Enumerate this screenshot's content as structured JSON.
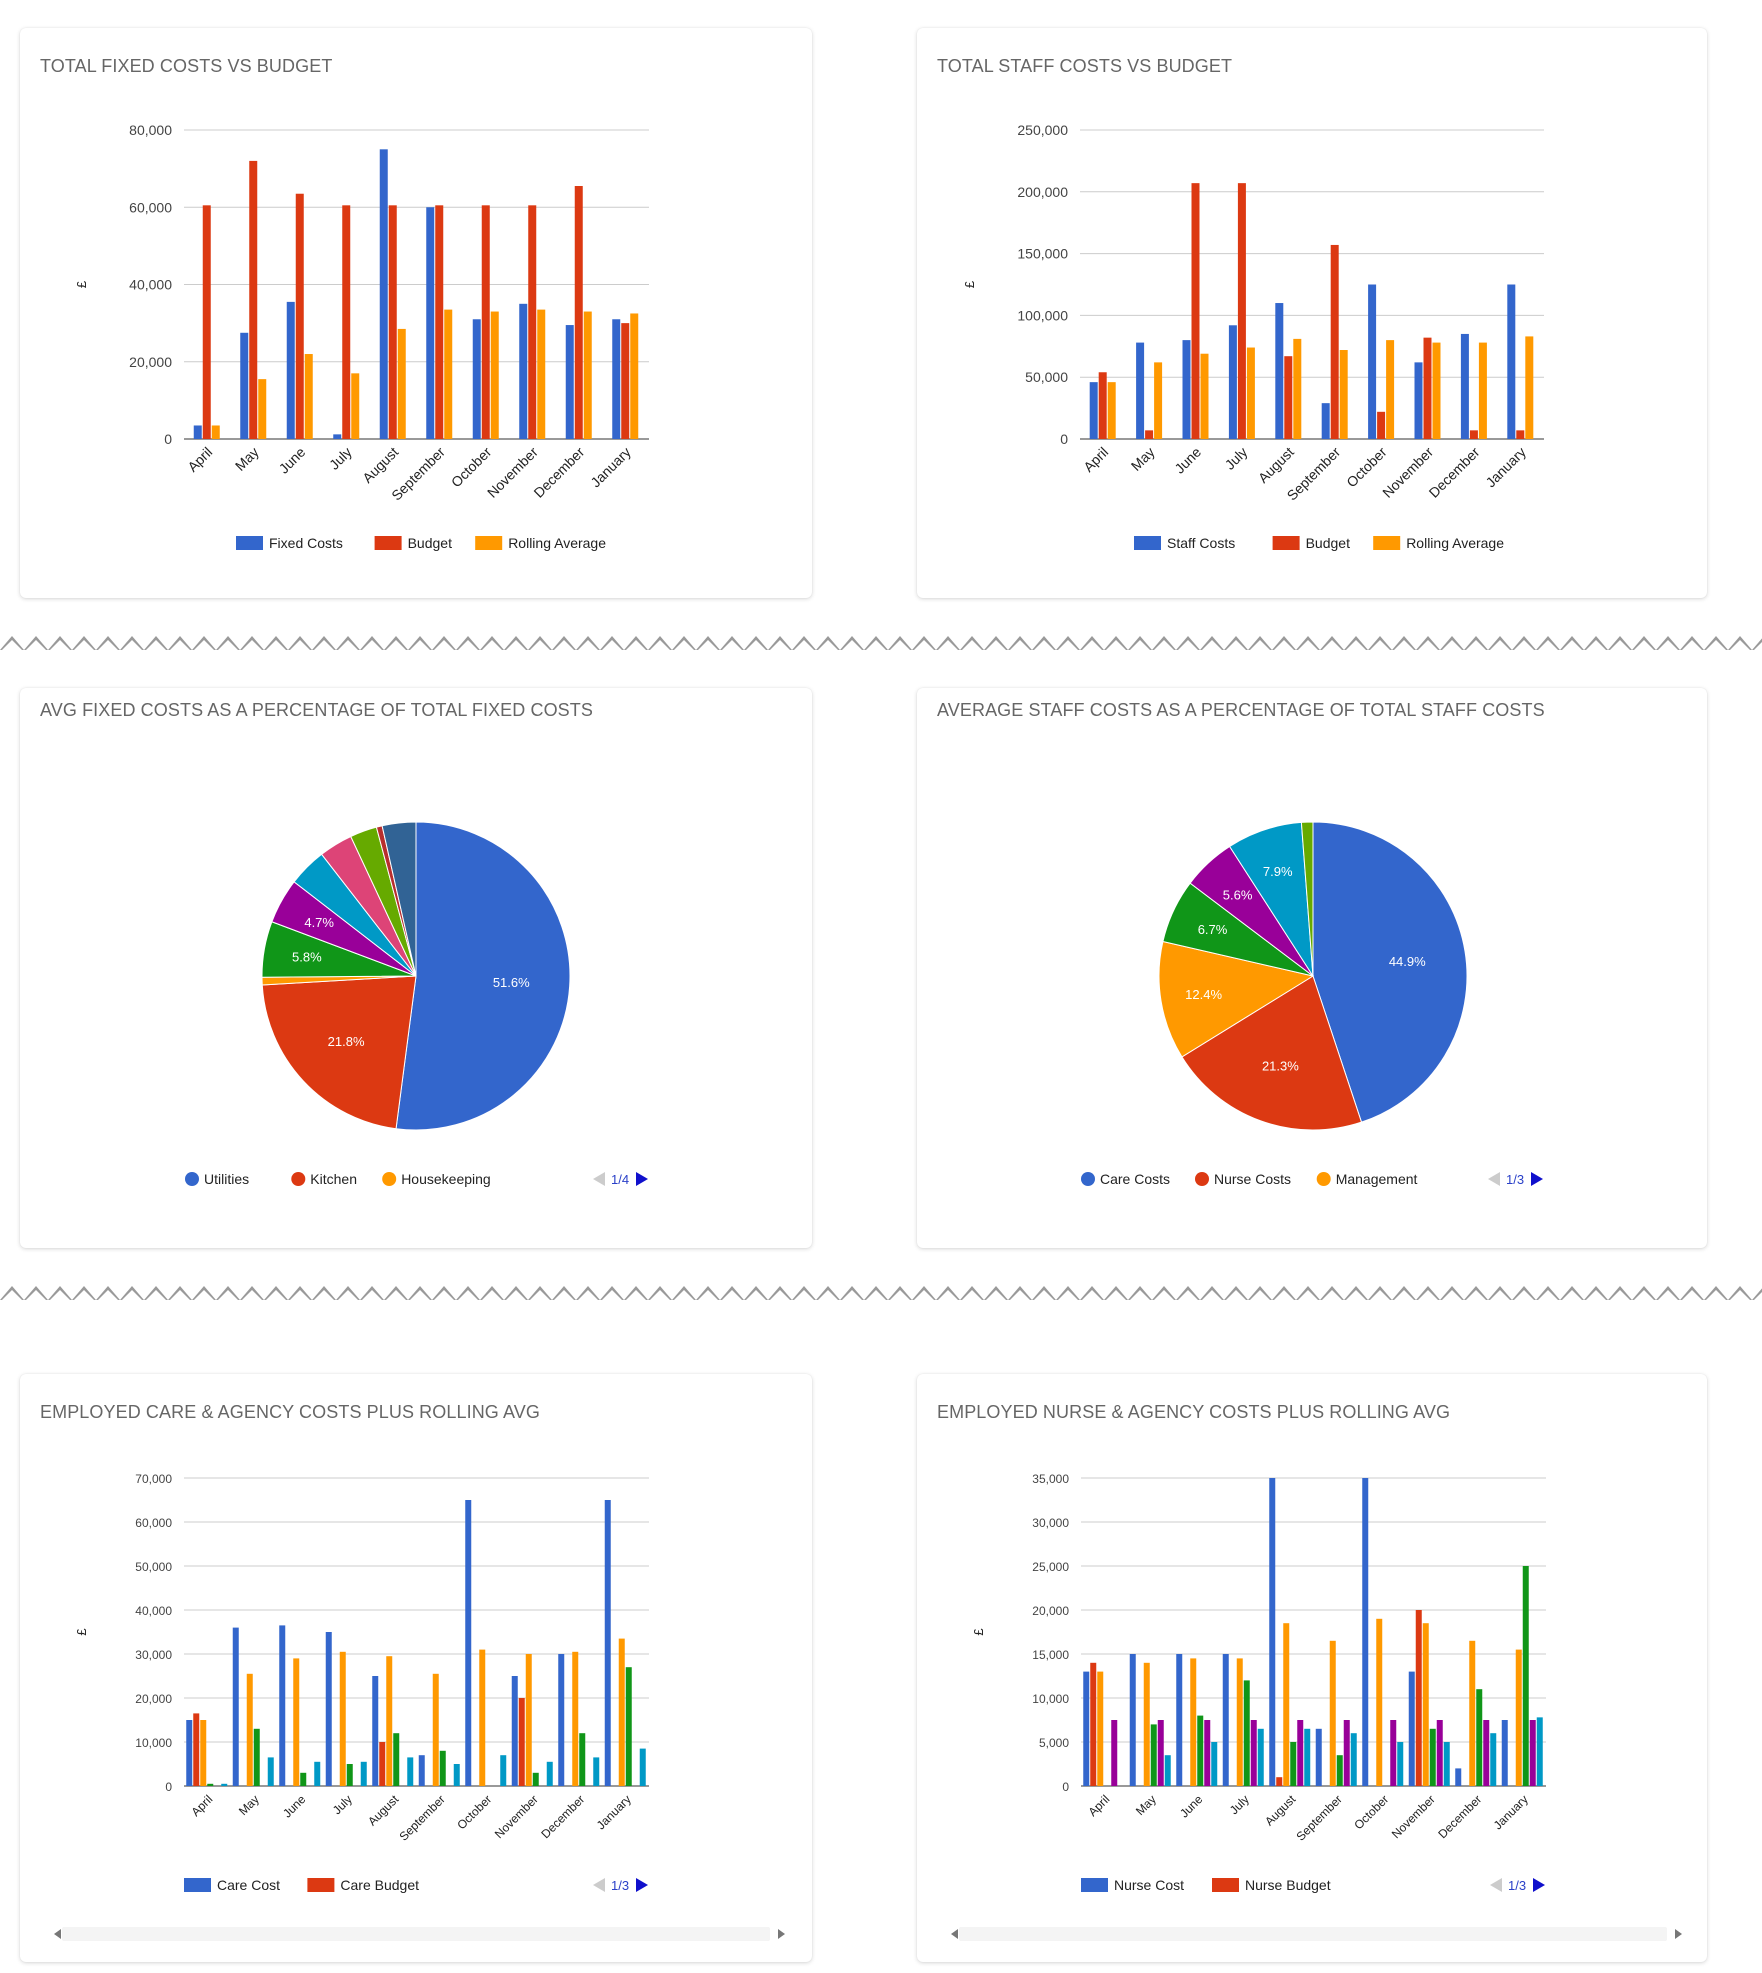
{
  "cards": [
    {
      "title": "TOTAL FIXED COSTS VS BUDGET"
    },
    {
      "title": "TOTAL STAFF COSTS VS BUDGET"
    },
    {
      "title": "AVG FIXED COSTS AS A PERCENTAGE OF TOTAL FIXED COSTS"
    },
    {
      "title": "AVERAGE STAFF COSTS AS A PERCENTAGE OF TOTAL STAFF COSTS"
    },
    {
      "title": "EMPLOYED CARE & AGENCY COSTS PLUS ROLLING AVG"
    },
    {
      "title": "EMPLOYED NURSE & AGENCY COSTS PLUS ROLLING AVG"
    }
  ],
  "chart_data": [
    {
      "type": "bar",
      "title": "TOTAL FIXED COSTS VS BUDGET",
      "ylabel": "£",
      "ylim": [
        0,
        80000
      ],
      "yticks": [
        "0",
        "20,000",
        "40,000",
        "60,000",
        "80,000"
      ],
      "categories": [
        "April",
        "May",
        "June",
        "July",
        "August",
        "September",
        "October",
        "November",
        "December",
        "January"
      ],
      "series": [
        {
          "name": "Fixed Costs",
          "color": "#3366cc",
          "values": [
            3500,
            27500,
            35500,
            1200,
            75000,
            60000,
            31000,
            35000,
            29500,
            31000
          ]
        },
        {
          "name": "Budget",
          "color": "#dc3912",
          "values": [
            60500,
            72000,
            63500,
            60500,
            60500,
            60500,
            60500,
            60500,
            65500,
            30000
          ]
        },
        {
          "name": "Rolling Average",
          "color": "#ff9900",
          "values": [
            3500,
            15500,
            22000,
            17000,
            28500,
            33500,
            33000,
            33500,
            33000,
            32500
          ]
        }
      ],
      "legend": "bottom"
    },
    {
      "type": "bar",
      "title": "TOTAL STAFF COSTS VS BUDGET",
      "ylabel": "£",
      "ylim": [
        0,
        250000
      ],
      "yticks": [
        "0",
        "50,000",
        "100,000",
        "150,000",
        "200,000",
        "250,000"
      ],
      "categories": [
        "April",
        "May",
        "June",
        "July",
        "August",
        "September",
        "October",
        "November",
        "December",
        "January"
      ],
      "series": [
        {
          "name": "Staff Costs",
          "color": "#3366cc",
          "values": [
            46000,
            78000,
            80000,
            92000,
            110000,
            29000,
            125000,
            62000,
            85000,
            125000
          ]
        },
        {
          "name": "Budget",
          "color": "#dc3912",
          "values": [
            54000,
            7000,
            207000,
            207000,
            67000,
            157000,
            22000,
            82000,
            7000,
            7000
          ]
        },
        {
          "name": "Rolling Average",
          "color": "#ff9900",
          "values": [
            46000,
            62000,
            69000,
            74000,
            81000,
            72000,
            80000,
            78000,
            78000,
            83000
          ]
        }
      ],
      "legend": "bottom"
    },
    {
      "type": "pie",
      "title": "AVG FIXED COSTS AS A PERCENTAGE OF TOTAL FIXED COSTS",
      "slices": [
        {
          "name": "Utilities",
          "value": 51.6,
          "color": "#3366cc",
          "label": "51.6%"
        },
        {
          "name": "Kitchen",
          "value": 21.8,
          "color": "#dc3912",
          "label": "21.8%"
        },
        {
          "name": "Housekeeping",
          "value": 0.8,
          "color": "#ff9900",
          "label": ""
        },
        {
          "name": "",
          "value": 5.8,
          "color": "#109618",
          "label": "5.8%"
        },
        {
          "name": "",
          "value": 4.7,
          "color": "#990099",
          "label": "4.7%"
        },
        {
          "name": "",
          "value": 4.0,
          "color": "#0099c6",
          "label": ""
        },
        {
          "name": "",
          "value": 3.5,
          "color": "#dd4477",
          "label": ""
        },
        {
          "name": "",
          "value": 2.8,
          "color": "#66aa00",
          "label": ""
        },
        {
          "name": "",
          "value": 0.6,
          "color": "#b82e2e",
          "label": ""
        },
        {
          "name": "",
          "value": 3.5,
          "color": "#316395",
          "label": ""
        }
      ],
      "legend_items": [
        "Utilities",
        "Kitchen",
        "Housekeeping"
      ],
      "pager": "1/4"
    },
    {
      "type": "pie",
      "title": "AVERAGE STAFF COSTS AS A PERCENTAGE OF TOTAL STAFF COSTS",
      "slices": [
        {
          "name": "Care Costs",
          "value": 44.9,
          "color": "#3366cc",
          "label": "44.9%"
        },
        {
          "name": "Nurse Costs",
          "value": 21.3,
          "color": "#dc3912",
          "label": "21.3%"
        },
        {
          "name": "Management",
          "value": 12.4,
          "color": "#ff9900",
          "label": "12.4%"
        },
        {
          "name": "",
          "value": 6.7,
          "color": "#109618",
          "label": "6.7%"
        },
        {
          "name": "",
          "value": 5.6,
          "color": "#990099",
          "label": "5.6%"
        },
        {
          "name": "",
          "value": 7.9,
          "color": "#0099c6",
          "label": "7.9%"
        },
        {
          "name": "",
          "value": 1.2,
          "color": "#66aa00",
          "label": ""
        }
      ],
      "legend_items": [
        "Care Costs",
        "Nurse Costs",
        "Management"
      ],
      "pager": "1/3"
    },
    {
      "type": "bar",
      "title": "EMPLOYED CARE & AGENCY COSTS PLUS ROLLING AVG",
      "ylabel": "£",
      "ylim": [
        0,
        70000
      ],
      "yticks": [
        "0",
        "10,000",
        "20,000",
        "30,000",
        "40,000",
        "50,000",
        "60,000",
        "70,000"
      ],
      "categories": [
        "April",
        "May",
        "June",
        "July",
        "August",
        "September",
        "October",
        "November",
        "December",
        "January"
      ],
      "series": [
        {
          "name": "Care Cost",
          "color": "#3366cc",
          "values": [
            15000,
            36000,
            36500,
            35000,
            25000,
            7000,
            65000,
            25000,
            30000,
            65000
          ]
        },
        {
          "name": "Care Budget",
          "color": "#dc3912",
          "values": [
            16500,
            0,
            0,
            0,
            10000,
            0,
            0,
            20000,
            0,
            0
          ]
        },
        {
          "name": "",
          "color": "#ff9900",
          "values": [
            15000,
            25500,
            29000,
            30500,
            29500,
            25500,
            31000,
            30000,
            30500,
            33500
          ]
        },
        {
          "name": "",
          "color": "#109618",
          "values": [
            500,
            13000,
            3000,
            5000,
            12000,
            8000,
            0,
            3000,
            12000,
            27000
          ]
        },
        {
          "name": "",
          "color": "#990099",
          "values": [
            0,
            0,
            0,
            0,
            0,
            0,
            0,
            0,
            0,
            0
          ]
        },
        {
          "name": "",
          "color": "#0099c6",
          "values": [
            500,
            6500,
            5500,
            5500,
            6500,
            5000,
            7000,
            5500,
            6500,
            8500
          ]
        }
      ],
      "legend_items": [
        "Care Cost",
        "Care Budget"
      ],
      "pager": "1/3"
    },
    {
      "type": "bar",
      "title": "EMPLOYED NURSE & AGENCY COSTS PLUS ROLLING AVG",
      "ylabel": "£",
      "ylim": [
        0,
        35000
      ],
      "yticks": [
        "0",
        "5,000",
        "10,000",
        "15,000",
        "20,000",
        "25,000",
        "30,000",
        "35,000"
      ],
      "categories": [
        "April",
        "May",
        "June",
        "July",
        "August",
        "September",
        "October",
        "November",
        "December",
        "January"
      ],
      "series": [
        {
          "name": "Nurse Cost",
          "color": "#3366cc",
          "values": [
            13000,
            15000,
            15000,
            15000,
            35000,
            6500,
            35000,
            13000,
            2000,
            7500
          ]
        },
        {
          "name": "Nurse Budget",
          "color": "#dc3912",
          "values": [
            14000,
            0,
            0,
            0,
            1000,
            0,
            0,
            20000,
            0,
            0
          ]
        },
        {
          "name": "",
          "color": "#ff9900",
          "values": [
            13000,
            14000,
            14500,
            14500,
            18500,
            16500,
            19000,
            18500,
            16500,
            15500
          ]
        },
        {
          "name": "",
          "color": "#109618",
          "values": [
            0,
            7000,
            8000,
            12000,
            5000,
            3500,
            0,
            6500,
            11000,
            25000
          ]
        },
        {
          "name": "",
          "color": "#990099",
          "values": [
            7500,
            7500,
            7500,
            7500,
            7500,
            7500,
            7500,
            7500,
            7500,
            7500
          ]
        },
        {
          "name": "",
          "color": "#0099c6",
          "values": [
            0,
            3500,
            5000,
            6500,
            6500,
            6000,
            5000,
            5000,
            6000,
            7800
          ]
        }
      ],
      "legend_items": [
        "Nurse Cost",
        "Nurse Budget"
      ],
      "pager": "1/3"
    }
  ]
}
